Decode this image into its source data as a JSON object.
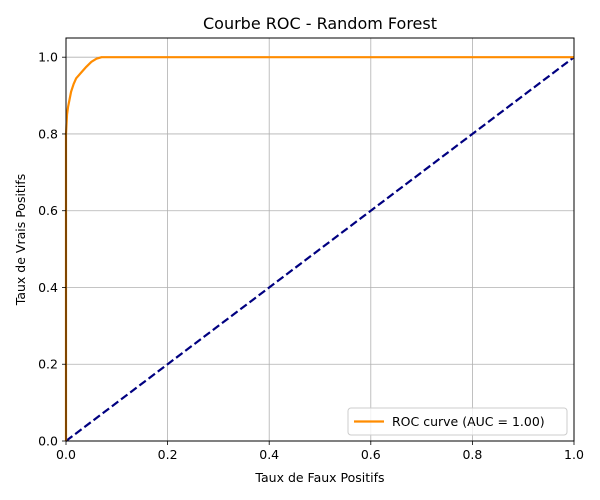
{
  "chart_data": {
    "type": "line",
    "title": "Courbe ROC - Random Forest",
    "xlabel": "Taux de Faux Positifs",
    "ylabel": "Taux de Vrais Positifs",
    "xlim": [
      0.0,
      1.0
    ],
    "ylim": [
      0.0,
      1.05
    ],
    "xticks": [
      0.0,
      0.2,
      0.4,
      0.6,
      0.8,
      1.0
    ],
    "yticks": [
      0.0,
      0.2,
      0.4,
      0.6,
      0.8,
      1.0
    ],
    "xtick_labels": [
      "0.0",
      "0.2",
      "0.4",
      "0.6",
      "0.8",
      "1.0"
    ],
    "ytick_labels": [
      "0.0",
      "0.2",
      "0.4",
      "0.6",
      "0.8",
      "1.0"
    ],
    "grid": true,
    "legend_position": "bottom-right",
    "series": [
      {
        "name": "ROC curve (AUC = 1.00)",
        "color": "#ff8c00",
        "style": "solid",
        "x": [
          0.0,
          0.0,
          0.002,
          0.004,
          0.007,
          0.01,
          0.015,
          0.02,
          0.03,
          0.04,
          0.05,
          0.06,
          0.07,
          0.08,
          1.0
        ],
        "y": [
          0.0,
          0.8,
          0.85,
          0.87,
          0.89,
          0.91,
          0.93,
          0.945,
          0.96,
          0.975,
          0.988,
          0.996,
          1.0,
          1.0,
          1.0
        ]
      },
      {
        "color": "#000080",
        "style": "dashed",
        "x": [
          0.0,
          1.0
        ],
        "y": [
          0.0,
          1.0
        ]
      }
    ]
  }
}
